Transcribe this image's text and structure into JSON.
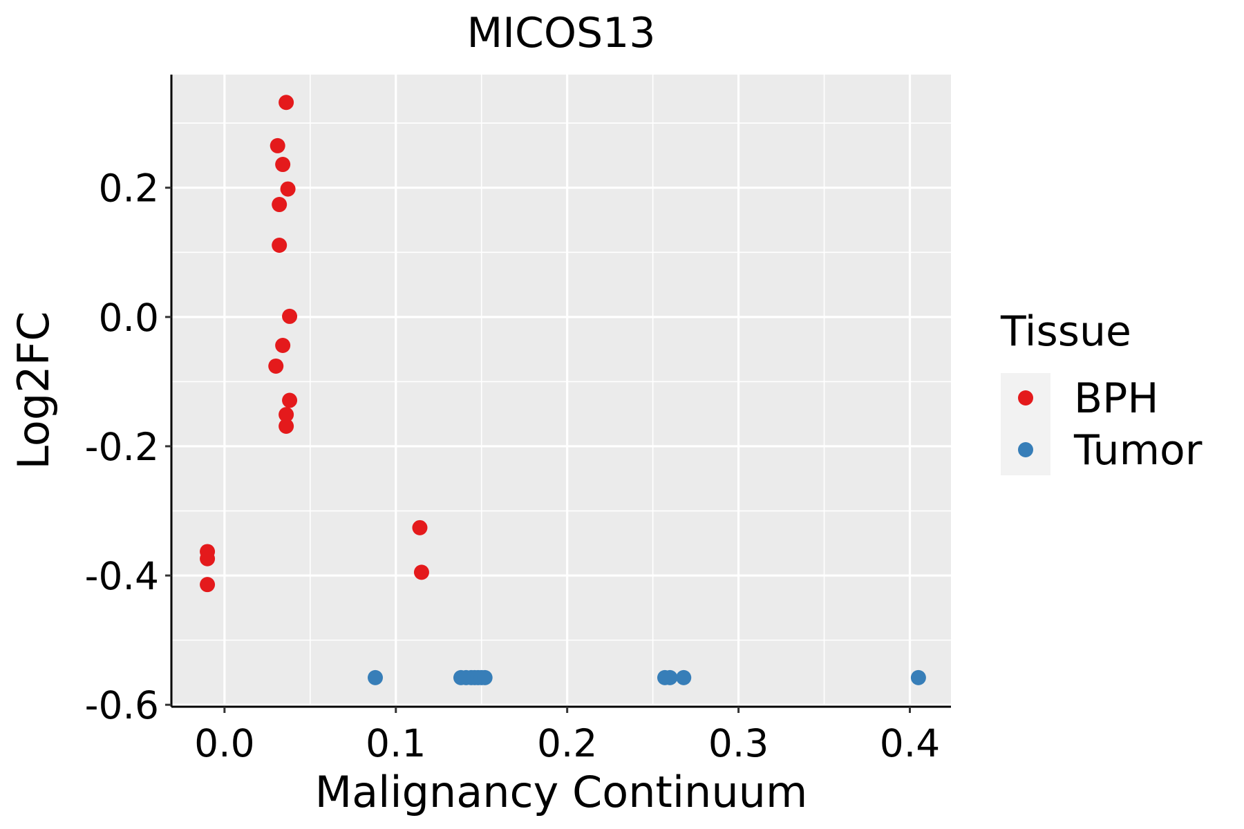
{
  "chart_data": {
    "type": "scatter",
    "title": "MICOS13",
    "xlabel": "Malignancy Continuum",
    "ylabel": "Log2FC",
    "xlim": [
      -0.031,
      0.424
    ],
    "ylim": [
      -0.603,
      0.375
    ],
    "xticks": [
      0.0,
      0.1,
      0.2,
      0.3,
      0.4
    ],
    "xtick_labels": [
      "0.0",
      "0.1",
      "0.2",
      "0.3",
      "0.4"
    ],
    "yticks": [
      -0.6,
      -0.4,
      -0.2,
      0.0,
      0.2
    ],
    "ytick_labels": [
      "-0.6",
      "-0.4",
      "-0.2",
      "0.0",
      "0.2"
    ],
    "grid": true,
    "panel_background": "#EBEBEB",
    "legend": {
      "title": "Tissue",
      "position": "right"
    },
    "series": [
      {
        "name": "BPH",
        "color": "#E41A1C",
        "points": [
          {
            "x": 0.036,
            "y": 0.332
          },
          {
            "x": 0.031,
            "y": 0.265
          },
          {
            "x": 0.034,
            "y": 0.236
          },
          {
            "x": 0.037,
            "y": 0.198
          },
          {
            "x": 0.032,
            "y": 0.174
          },
          {
            "x": 0.032,
            "y": 0.111
          },
          {
            "x": 0.038,
            "y": 0.001
          },
          {
            "x": 0.034,
            "y": -0.044
          },
          {
            "x": 0.03,
            "y": -0.076
          },
          {
            "x": 0.038,
            "y": -0.129
          },
          {
            "x": 0.036,
            "y": -0.151
          },
          {
            "x": 0.036,
            "y": -0.169
          },
          {
            "x": -0.01,
            "y": -0.363
          },
          {
            "x": -0.01,
            "y": -0.374
          },
          {
            "x": -0.01,
            "y": -0.414
          },
          {
            "x": 0.114,
            "y": -0.326
          },
          {
            "x": 0.115,
            "y": -0.395
          }
        ]
      },
      {
        "name": "Tumor",
        "color": "#377EB8",
        "points": [
          {
            "x": 0.088,
            "y": -0.558
          },
          {
            "x": 0.138,
            "y": -0.558
          },
          {
            "x": 0.141,
            "y": -0.558
          },
          {
            "x": 0.144,
            "y": -0.558
          },
          {
            "x": 0.146,
            "y": -0.558
          },
          {
            "x": 0.148,
            "y": -0.558
          },
          {
            "x": 0.15,
            "y": -0.558
          },
          {
            "x": 0.152,
            "y": -0.558
          },
          {
            "x": 0.257,
            "y": -0.558
          },
          {
            "x": 0.26,
            "y": -0.558
          },
          {
            "x": 0.268,
            "y": -0.558
          },
          {
            "x": 0.405,
            "y": -0.558
          }
        ]
      }
    ]
  }
}
